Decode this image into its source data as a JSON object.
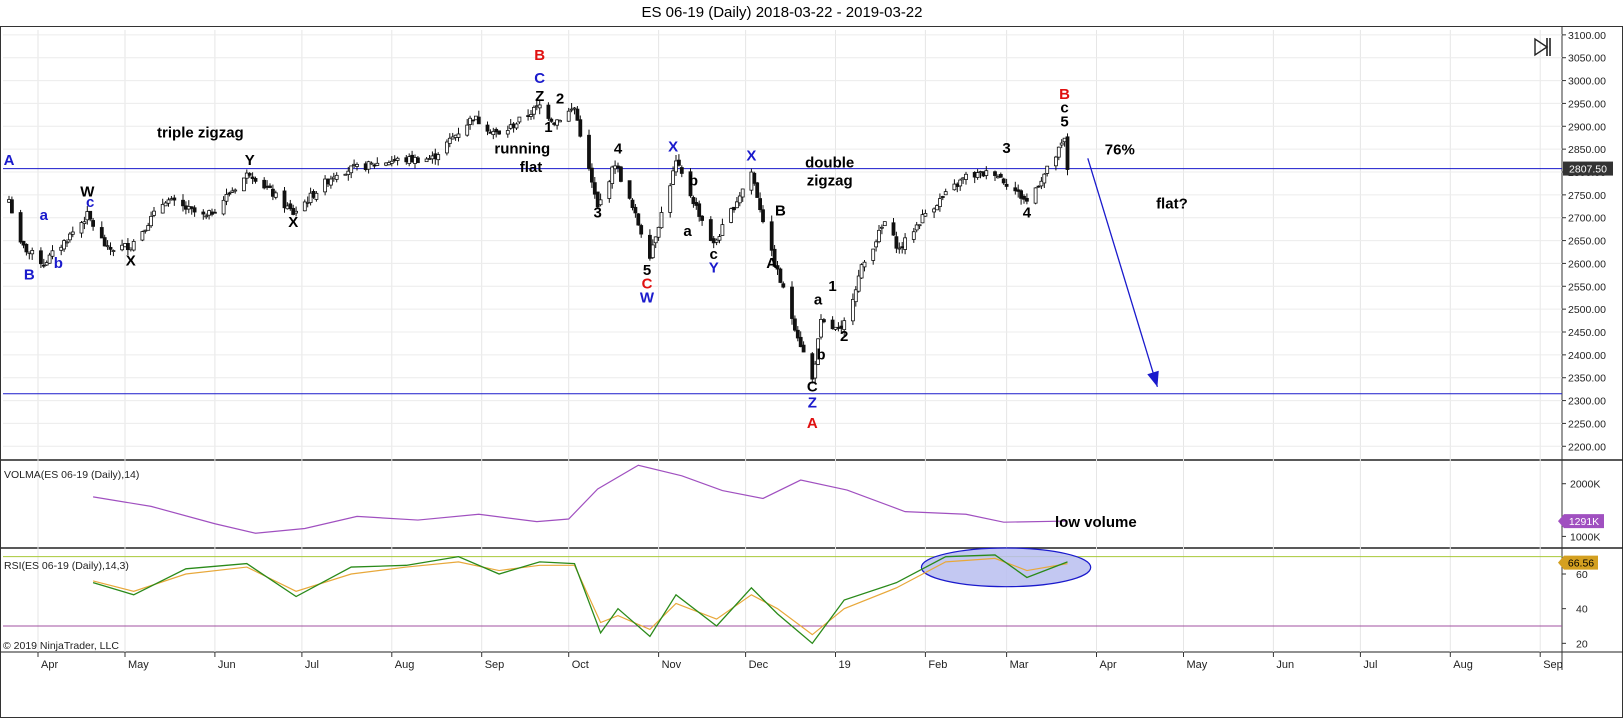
{
  "title": "ES 06-19 (Daily)  2018-03-22 - 2019-03-22",
  "copyright": "© 2019 NinjaTrader, LLC",
  "colors": {
    "wave_blue": "#1a1acc",
    "wave_red": "#e01010",
    "wave_black": "#000000",
    "hline": "#1a1acc",
    "volma": "#a050c0",
    "rsi": "#2a8a1a",
    "rsi_signal": "#e8a83a",
    "rsi_upper": "#a8c838",
    "rsi_lower": "#a050a0",
    "ellipse_fill": "#b8bef0",
    "ellipse_stroke": "#1a1acc",
    "price_tag": "#333333",
    "volma_tag": "#a050c0",
    "rsi_tag": "#d4a020"
  },
  "icons": {
    "skip": "skip-to-end-icon"
  },
  "chart_data": [
    {
      "type": "candlestick",
      "name": "ES 06-19 (Daily)",
      "x_range": [
        "2018-03-22",
        "2019-03-22"
      ],
      "x_ticks": [
        "Apr",
        "May",
        "Jun",
        "Jul",
        "Aug",
        "Sep",
        "Oct",
        "Nov",
        "Dec",
        "19",
        "Feb",
        "Mar",
        "Apr",
        "May",
        "Jun",
        "Jul",
        "Aug",
        "Sep"
      ],
      "y_ticks": [
        "3100.00",
        "3050.00",
        "3000.00",
        "2950.00",
        "2900.00",
        "2850.00",
        "2800.00",
        "2750.00",
        "2700.00",
        "2650.00",
        "2600.00",
        "2550.00",
        "2500.00",
        "2450.00",
        "2400.00",
        "2350.00",
        "2300.00",
        "2250.00",
        "2200.00"
      ],
      "ylim": [
        2170,
        3115
      ],
      "last_price_label": "2807.50",
      "anchors": [
        [
          "2018-03-22",
          2740
        ],
        [
          "2018-03-26",
          2640
        ],
        [
          "2018-04-03",
          2600
        ],
        [
          "2018-04-09",
          2640
        ],
        [
          "2018-04-18",
          2705
        ],
        [
          "2018-04-25",
          2630
        ],
        [
          "2018-05-03",
          2640
        ],
        [
          "2018-05-15",
          2740
        ],
        [
          "2018-05-29",
          2700
        ],
        [
          "2018-06-13",
          2800
        ],
        [
          "2018-06-28",
          2710
        ],
        [
          "2018-07-13",
          2800
        ],
        [
          "2018-08-01",
          2825
        ],
        [
          "2018-08-15",
          2830
        ],
        [
          "2018-08-29",
          2920
        ],
        [
          "2018-09-07",
          2880
        ],
        [
          "2018-09-21",
          2945
        ],
        [
          "2018-09-26",
          2910
        ],
        [
          "2018-10-03",
          2940
        ],
        [
          "2018-10-11",
          2720
        ],
        [
          "2018-10-17",
          2820
        ],
        [
          "2018-10-29",
          2620
        ],
        [
          "2018-11-07",
          2820
        ],
        [
          "2018-11-20",
          2640
        ],
        [
          "2018-12-03",
          2800
        ],
        [
          "2018-12-10",
          2620
        ],
        [
          "2018-12-24",
          2345
        ],
        [
          "2018-12-27",
          2470
        ],
        [
          "2019-01-03",
          2450
        ],
        [
          "2019-01-10",
          2590
        ],
        [
          "2019-01-18",
          2690
        ],
        [
          "2019-01-23",
          2630
        ],
        [
          "2019-02-01",
          2710
        ],
        [
          "2019-02-15",
          2790
        ],
        [
          "2019-02-25",
          2800
        ],
        [
          "2019-03-08",
          2735
        ],
        [
          "2019-03-18",
          2835
        ],
        [
          "2019-03-21",
          2870
        ],
        [
          "2019-03-22",
          2807
        ]
      ],
      "horizontal_lines": [
        2807.5,
        2315
      ],
      "arrow": {
        "from": [
          "2019-03-29",
          2830
        ],
        "to": [
          "2019-04-22",
          2330
        ],
        "label": "76%"
      },
      "wave_labels": [
        {
          "text": "A",
          "color": "blue",
          "date": "2018-03-22",
          "price": 2815
        },
        {
          "text": "B",
          "color": "blue",
          "date": "2018-03-29",
          "price": 2565
        },
        {
          "text": "a",
          "color": "blue",
          "date": "2018-04-03",
          "price": 2695
        },
        {
          "text": "b",
          "color": "blue",
          "date": "2018-04-08",
          "price": 2590
        },
        {
          "text": "W",
          "color": "black",
          "date": "2018-04-18",
          "price": 2746
        },
        {
          "text": "c",
          "color": "blue",
          "date": "2018-04-19",
          "price": 2723
        },
        {
          "text": "X",
          "color": "black",
          "date": "2018-05-03",
          "price": 2595
        },
        {
          "text": "triple zigzag",
          "color": "black",
          "date": "2018-05-27",
          "price": 2875
        },
        {
          "text": "Y",
          "color": "black",
          "date": "2018-06-13",
          "price": 2815
        },
        {
          "text": "X",
          "color": "black",
          "date": "2018-06-28",
          "price": 2680
        },
        {
          "text": "B",
          "color": "red",
          "date": "2018-09-21",
          "price": 3045
        },
        {
          "text": "C",
          "color": "blue",
          "date": "2018-09-21",
          "price": 2995
        },
        {
          "text": "Z",
          "color": "black",
          "date": "2018-09-21",
          "price": 2955
        },
        {
          "text": "2",
          "color": "black",
          "date": "2018-09-28",
          "price": 2950
        },
        {
          "text": "1",
          "color": "black",
          "date": "2018-09-24",
          "price": 2888
        },
        {
          "text": "running",
          "color": "black",
          "date": "2018-09-15",
          "price": 2840
        },
        {
          "text": "flat",
          "color": "black",
          "date": "2018-09-18",
          "price": 2800
        },
        {
          "text": "4",
          "color": "black",
          "date": "2018-10-18",
          "price": 2840
        },
        {
          "text": "3",
          "color": "black",
          "date": "2018-10-11",
          "price": 2700
        },
        {
          "text": "5",
          "color": "black",
          "date": "2018-10-28",
          "price": 2575
        },
        {
          "text": "C",
          "color": "red",
          "date": "2018-10-28",
          "price": 2545
        },
        {
          "text": "W",
          "color": "blue",
          "date": "2018-10-28",
          "price": 2515
        },
        {
          "text": "X",
          "color": "blue",
          "date": "2018-11-06",
          "price": 2845
        },
        {
          "text": "b",
          "color": "black",
          "date": "2018-11-13",
          "price": 2770
        },
        {
          "text": "a",
          "color": "black",
          "date": "2018-11-11",
          "price": 2660
        },
        {
          "text": "c",
          "color": "black",
          "date": "2018-11-20",
          "price": 2610
        },
        {
          "text": "Y",
          "color": "blue",
          "date": "2018-11-20",
          "price": 2580
        },
        {
          "text": "X",
          "color": "blue",
          "date": "2018-12-03",
          "price": 2825
        },
        {
          "text": "double",
          "color": "black",
          "date": "2018-12-30",
          "price": 2810
        },
        {
          "text": "zigzag",
          "color": "black",
          "date": "2018-12-30",
          "price": 2770
        },
        {
          "text": "B",
          "color": "black",
          "date": "2018-12-13",
          "price": 2705
        },
        {
          "text": "A",
          "color": "black",
          "date": "2018-12-10",
          "price": 2590
        },
        {
          "text": "a",
          "color": "black",
          "date": "2018-12-26",
          "price": 2510
        },
        {
          "text": "b",
          "color": "black",
          "date": "2018-12-27",
          "price": 2390
        },
        {
          "text": "1",
          "color": "black",
          "date": "2018-12-31",
          "price": 2540
        },
        {
          "text": "2",
          "color": "black",
          "date": "2019-01-04",
          "price": 2430
        },
        {
          "text": "C",
          "color": "black",
          "date": "2018-12-24",
          "price": 2320
        },
        {
          "text": "Z",
          "color": "blue",
          "date": "2018-12-24",
          "price": 2285
        },
        {
          "text": "A",
          "color": "red",
          "date": "2018-12-24",
          "price": 2240
        },
        {
          "text": "3",
          "color": "black",
          "date": "2019-03-01",
          "price": 2842
        },
        {
          "text": "4",
          "color": "black",
          "date": "2019-03-08",
          "price": 2700
        },
        {
          "text": "B",
          "color": "red",
          "date": "2019-03-21",
          "price": 2960
        },
        {
          "text": "c",
          "color": "black",
          "date": "2019-03-21",
          "price": 2930
        },
        {
          "text": "5",
          "color": "black",
          "date": "2019-03-21",
          "price": 2900
        },
        {
          "text": "flat?",
          "color": "black",
          "date": "2019-04-27",
          "price": 2720
        }
      ]
    },
    {
      "type": "line",
      "title": "VOLMA(ES 06-19 (Daily),14)",
      "y_ticks": [
        "2000K",
        "1000K"
      ],
      "ylim": [
        780,
        2450
      ],
      "last_value_label": "1291K",
      "annotation": "low volume",
      "series": [
        {
          "x": [
            "2018-04-20",
            "2018-05-10",
            "2018-06-01",
            "2018-06-15",
            "2018-07-02",
            "2018-07-20",
            "2018-08-10",
            "2018-08-31",
            "2018-09-20",
            "2018-10-01",
            "2018-10-11",
            "2018-10-25",
            "2018-11-09",
            "2018-11-23",
            "2018-12-07",
            "2018-12-20",
            "2019-01-05",
            "2019-01-25",
            "2019-02-15",
            "2019-02-28",
            "2019-03-22"
          ],
          "values": [
            1750,
            1570,
            1240,
            1060,
            1150,
            1380,
            1310,
            1420,
            1280,
            1330,
            1900,
            2350,
            2150,
            1870,
            1720,
            2070,
            1880,
            1470,
            1420,
            1270,
            1291
          ]
        }
      ]
    },
    {
      "type": "line",
      "title": "RSI(ES 06-19 (Daily),14,3)",
      "y_ticks": [
        "60",
        "40",
        "20"
      ],
      "ylim": [
        15,
        75
      ],
      "last_value_label": "66.56",
      "levels": [
        70,
        30
      ],
      "highlight": {
        "from": "2019-02-01",
        "to": "2019-03-30",
        "y_range": [
          55,
          75
        ]
      },
      "series": [
        {
          "x": [
            "2018-04-20",
            "2018-05-04",
            "2018-05-22",
            "2018-06-12",
            "2018-06-29",
            "2018-07-18",
            "2018-08-06",
            "2018-08-24",
            "2018-09-07",
            "2018-09-21",
            "2018-10-03",
            "2018-10-12",
            "2018-10-18",
            "2018-10-29",
            "2018-11-07",
            "2018-11-21",
            "2018-12-03",
            "2018-12-12",
            "2018-12-24",
            "2019-01-04",
            "2019-01-22",
            "2019-02-08",
            "2019-02-25",
            "2019-03-08",
            "2019-03-22"
          ],
          "values": [
            55,
            48,
            63,
            66,
            47,
            64,
            65,
            70,
            60,
            67,
            66,
            26,
            40,
            24,
            48,
            30,
            52,
            37,
            20,
            45,
            55,
            70,
            71,
            58,
            67
          ]
        },
        {
          "x": [
            "2018-04-20",
            "2018-05-04",
            "2018-05-22",
            "2018-06-12",
            "2018-06-29",
            "2018-07-18",
            "2018-08-06",
            "2018-08-24",
            "2018-09-07",
            "2018-09-21",
            "2018-10-03",
            "2018-10-12",
            "2018-10-18",
            "2018-10-29",
            "2018-11-07",
            "2018-11-21",
            "2018-12-03",
            "2018-12-12",
            "2018-12-24",
            "2019-01-04",
            "2019-01-22",
            "2019-02-08",
            "2019-02-25",
            "2019-03-08",
            "2019-03-22"
          ],
          "values": [
            56,
            50,
            60,
            64,
            50,
            60,
            64,
            67,
            62,
            65,
            65,
            32,
            36,
            28,
            43,
            34,
            48,
            40,
            25,
            40,
            52,
            67,
            69,
            62,
            66
          ]
        }
      ]
    }
  ]
}
